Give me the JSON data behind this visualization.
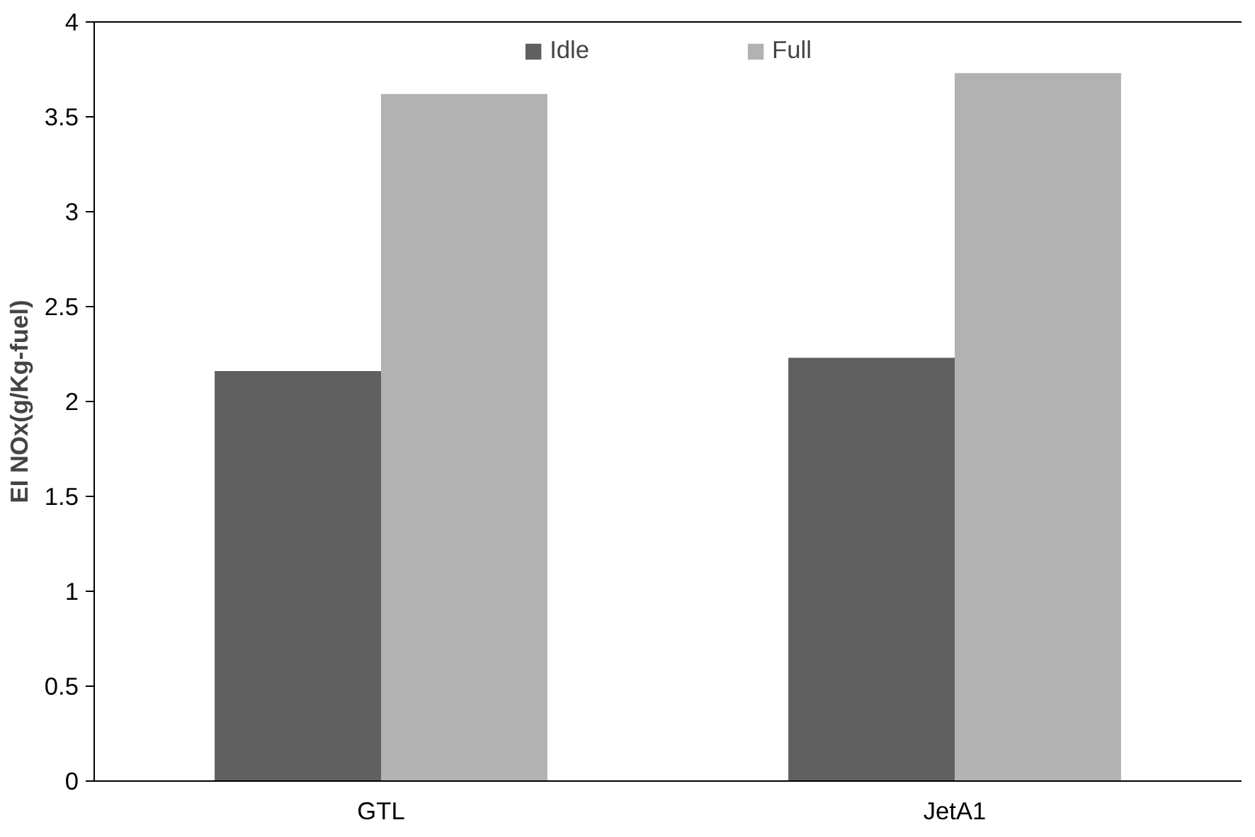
{
  "chart_data": {
    "type": "bar",
    "ylabel": "EI NOx(g/Kg-fuel)",
    "categories": [
      "GTL",
      "JetA1"
    ],
    "series": [
      {
        "name": "Idle",
        "color": "#606060",
        "values": [
          2.16,
          2.23
        ]
      },
      {
        "name": "Full",
        "color": "#b2b2b2",
        "values": [
          3.62,
          3.73
        ]
      }
    ],
    "ylim": [
      0,
      4
    ],
    "yticks": [
      0,
      0.5,
      1,
      1.5,
      2,
      2.5,
      3,
      3.5,
      4
    ],
    "legend": "top",
    "grid": false
  }
}
